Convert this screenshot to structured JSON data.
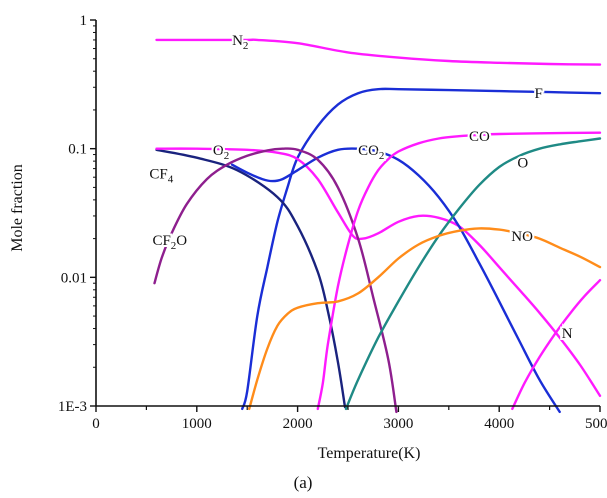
{
  "chart_data": {
    "type": "line",
    "title": "",
    "panel_label": "(a)",
    "xlabel": "Temperature(K)",
    "ylabel": "Mole fraction",
    "xlim": [
      0,
      5000
    ],
    "ylim": [
      0.001,
      1
    ],
    "y_scale": "log",
    "grid": false,
    "x_ticks": [
      {
        "value": 0,
        "label": "0"
      },
      {
        "value": 1000,
        "label": "1000"
      },
      {
        "value": 2000,
        "label": "2000"
      },
      {
        "value": 3000,
        "label": "3000"
      },
      {
        "value": 4000,
        "label": "4000"
      },
      {
        "value": 5000,
        "label": "5000"
      }
    ],
    "y_ticks": [
      {
        "value": 1,
        "label": "1"
      },
      {
        "value": 0.1,
        "label": "0.1"
      },
      {
        "value": 0.01,
        "label": "0.01"
      },
      {
        "value": 0.001,
        "label": "1E-3"
      }
    ],
    "series": [
      {
        "name": "N2",
        "color": "#ff1aff",
        "points": [
          [
            600,
            0.7
          ],
          [
            1000,
            0.7
          ],
          [
            1500,
            0.7
          ],
          [
            1600,
            0.7
          ],
          [
            2000,
            0.66
          ],
          [
            2500,
            0.56
          ],
          [
            3000,
            0.51
          ],
          [
            3500,
            0.48
          ],
          [
            4000,
            0.465
          ],
          [
            4500,
            0.455
          ],
          [
            5000,
            0.45
          ]
        ]
      },
      {
        "name": "F",
        "color": "#1a2ed6",
        "points": [
          [
            1450,
            0.00095
          ],
          [
            1500,
            0.0013
          ],
          [
            1600,
            0.005
          ],
          [
            1700,
            0.012
          ],
          [
            1800,
            0.027
          ],
          [
            1900,
            0.05
          ],
          [
            2000,
            0.085
          ],
          [
            2200,
            0.15
          ],
          [
            2400,
            0.22
          ],
          [
            2600,
            0.27
          ],
          [
            2800,
            0.29
          ],
          [
            3000,
            0.29
          ],
          [
            3500,
            0.285
          ],
          [
            4000,
            0.28
          ],
          [
            4500,
            0.275
          ],
          [
            5000,
            0.27
          ]
        ]
      },
      {
        "name": "CF4",
        "color": "#1a237e",
        "points": [
          [
            600,
            0.098
          ],
          [
            1000,
            0.085
          ],
          [
            1400,
            0.068
          ],
          [
            1800,
            0.042
          ],
          [
            2000,
            0.025
          ],
          [
            2200,
            0.011
          ],
          [
            2300,
            0.0055
          ],
          [
            2400,
            0.0022
          ],
          [
            2470,
            0.00098
          ]
        ]
      },
      {
        "name": "O2",
        "color": "#ff1aff",
        "points": [
          [
            600,
            0.1
          ],
          [
            1000,
            0.1
          ],
          [
            1500,
            0.098
          ],
          [
            1800,
            0.093
          ],
          [
            2000,
            0.083
          ],
          [
            2200,
            0.058
          ],
          [
            2400,
            0.032
          ],
          [
            2550,
            0.021
          ],
          [
            2650,
            0.02
          ],
          [
            2800,
            0.022
          ],
          [
            3000,
            0.027
          ],
          [
            3200,
            0.03
          ],
          [
            3400,
            0.029
          ],
          [
            3600,
            0.025
          ],
          [
            3800,
            0.018
          ],
          [
            4000,
            0.012
          ],
          [
            4200,
            0.008
          ],
          [
            4400,
            0.0053
          ],
          [
            4600,
            0.0034
          ],
          [
            4800,
            0.0021
          ],
          [
            5000,
            0.0012
          ]
        ]
      },
      {
        "name": "CO2",
        "color": "#1a2ed6",
        "points": [
          [
            1350,
            0.075
          ],
          [
            1500,
            0.065
          ],
          [
            1650,
            0.058
          ],
          [
            1750,
            0.056
          ],
          [
            1850,
            0.058
          ],
          [
            2000,
            0.068
          ],
          [
            2200,
            0.085
          ],
          [
            2400,
            0.098
          ],
          [
            2600,
            0.1
          ],
          [
            2800,
            0.095
          ],
          [
            3000,
            0.082
          ],
          [
            3200,
            0.062
          ],
          [
            3400,
            0.042
          ],
          [
            3600,
            0.025
          ],
          [
            3800,
            0.013
          ],
          [
            4000,
            0.0065
          ],
          [
            4200,
            0.0032
          ],
          [
            4400,
            0.0016
          ],
          [
            4600,
            0.0009
          ]
        ]
      },
      {
        "name": "CF2O",
        "color": "#8e1f8e",
        "points": [
          [
            580,
            0.009
          ],
          [
            650,
            0.014
          ],
          [
            750,
            0.022
          ],
          [
            900,
            0.037
          ],
          [
            1100,
            0.058
          ],
          [
            1300,
            0.075
          ],
          [
            1500,
            0.088
          ],
          [
            1700,
            0.097
          ],
          [
            1850,
            0.1
          ],
          [
            2000,
            0.098
          ],
          [
            2200,
            0.082
          ],
          [
            2400,
            0.05
          ],
          [
            2600,
            0.02
          ],
          [
            2750,
            0.007
          ],
          [
            2900,
            0.0023
          ],
          [
            2980,
            0.0009
          ]
        ]
      },
      {
        "name": "CO",
        "color": "#ff1aff",
        "points": [
          [
            2200,
            0.00095
          ],
          [
            2250,
            0.0015
          ],
          [
            2300,
            0.003
          ],
          [
            2400,
            0.0085
          ],
          [
            2500,
            0.018
          ],
          [
            2600,
            0.033
          ],
          [
            2700,
            0.05
          ],
          [
            2800,
            0.068
          ],
          [
            2900,
            0.083
          ],
          [
            3000,
            0.095
          ],
          [
            3200,
            0.11
          ],
          [
            3400,
            0.12
          ],
          [
            3600,
            0.125
          ],
          [
            3800,
            0.128
          ],
          [
            4000,
            0.13
          ],
          [
            4500,
            0.132
          ],
          [
            5000,
            0.133
          ]
        ]
      },
      {
        "name": "O",
        "color": "#1f8a85",
        "points": [
          [
            2480,
            0.00095
          ],
          [
            2600,
            0.0016
          ],
          [
            2800,
            0.0034
          ],
          [
            3000,
            0.0065
          ],
          [
            3200,
            0.012
          ],
          [
            3400,
            0.021
          ],
          [
            3600,
            0.034
          ],
          [
            3800,
            0.052
          ],
          [
            4000,
            0.072
          ],
          [
            4200,
            0.088
          ],
          [
            4400,
            0.1
          ],
          [
            4600,
            0.108
          ],
          [
            4800,
            0.114
          ],
          [
            5000,
            0.12
          ]
        ]
      },
      {
        "name": "NO",
        "color": "#ff8c1a",
        "points": [
          [
            1520,
            0.00095
          ],
          [
            1600,
            0.0016
          ],
          [
            1700,
            0.0028
          ],
          [
            1800,
            0.0042
          ],
          [
            1900,
            0.0052
          ],
          [
            2000,
            0.0058
          ],
          [
            2200,
            0.0063
          ],
          [
            2400,
            0.0065
          ],
          [
            2600,
            0.0075
          ],
          [
            2800,
            0.01
          ],
          [
            3000,
            0.014
          ],
          [
            3200,
            0.018
          ],
          [
            3400,
            0.021
          ],
          [
            3600,
            0.023
          ],
          [
            3800,
            0.024
          ],
          [
            4000,
            0.0235
          ],
          [
            4200,
            0.022
          ],
          [
            4400,
            0.02
          ],
          [
            4600,
            0.017
          ],
          [
            4800,
            0.0145
          ],
          [
            5000,
            0.012
          ]
        ]
      },
      {
        "name": "N",
        "color": "#ff1aff",
        "points": [
          [
            4130,
            0.00095
          ],
          [
            4250,
            0.0015
          ],
          [
            4400,
            0.0024
          ],
          [
            4550,
            0.0036
          ],
          [
            4700,
            0.0052
          ],
          [
            4850,
            0.0072
          ],
          [
            5000,
            0.0095
          ]
        ]
      }
    ],
    "labels": [
      {
        "series": "N2",
        "base": "N",
        "sub": "2",
        "x": 1350,
        "y": 0.7
      },
      {
        "series": "F",
        "base": "F",
        "sub": "",
        "x": 4350,
        "y": 0.27
      },
      {
        "series": "CF4",
        "base": "CF",
        "sub": "4",
        "x": 530,
        "y": 0.064
      },
      {
        "series": "O2",
        "base": "O",
        "sub": "2",
        "x": 1160,
        "y": 0.098
      },
      {
        "series": "CO2",
        "base": "CO",
        "sub": "2",
        "x": 2600,
        "y": 0.098
      },
      {
        "series": "CF2O",
        "base": "CF",
        "sub": "2",
        "tail": "O",
        "x": 560,
        "y": 0.0195
      },
      {
        "series": "CO",
        "base": "CO",
        "sub": "",
        "x": 3700,
        "y": 0.125
      },
      {
        "series": "O",
        "base": "O",
        "sub": "",
        "x": 4180,
        "y": 0.078
      },
      {
        "series": "NO",
        "base": "NO",
        "sub": "",
        "x": 4120,
        "y": 0.021
      },
      {
        "series": "N",
        "base": "N",
        "sub": "",
        "x": 4620,
        "y": 0.0037
      }
    ]
  }
}
